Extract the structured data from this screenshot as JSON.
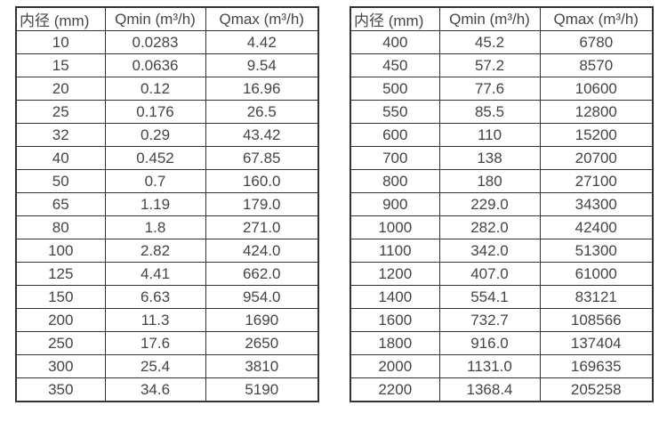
{
  "colors": {
    "background": "#ffffff",
    "text": "#444444",
    "border": "#333333"
  },
  "tables": [
    {
      "name": "flow-spec-table-small-diameters",
      "headers": [
        "内径 (mm)",
        "Qmin (m³/h)",
        "Qmax (m³/h)"
      ],
      "rows": [
        [
          "10",
          "0.0283",
          "4.42"
        ],
        [
          "15",
          "0.0636",
          "9.54"
        ],
        [
          "20",
          "0.12",
          "16.96"
        ],
        [
          "25",
          "0.176",
          "26.5"
        ],
        [
          "32",
          "0.29",
          "43.42"
        ],
        [
          "40",
          "0.452",
          "67.85"
        ],
        [
          "50",
          "0.7",
          "160.0"
        ],
        [
          "65",
          "1.19",
          "179.0"
        ],
        [
          "80",
          "1.8",
          "271.0"
        ],
        [
          "100",
          "2.82",
          "424.0"
        ],
        [
          "125",
          "4.41",
          "662.0"
        ],
        [
          "150",
          "6.63",
          "954.0"
        ],
        [
          "200",
          "11.3",
          "1690"
        ],
        [
          "250",
          "17.6",
          "2650"
        ],
        [
          "300",
          "25.4",
          "3810"
        ],
        [
          "350",
          "34.6",
          "5190"
        ]
      ]
    },
    {
      "name": "flow-spec-table-large-diameters",
      "headers": [
        "内径 (mm)",
        "Qmin (m³/h)",
        "Qmax (m³/h)"
      ],
      "rows": [
        [
          "400",
          "45.2",
          "6780"
        ],
        [
          "450",
          "57.2",
          "8570"
        ],
        [
          "500",
          "77.6",
          "10600"
        ],
        [
          "550",
          "85.5",
          "12800"
        ],
        [
          "600",
          "110",
          "15200"
        ],
        [
          "700",
          "138",
          "20700"
        ],
        [
          "800",
          "180",
          "27100"
        ],
        [
          "900",
          "229.0",
          "34300"
        ],
        [
          "1000",
          "282.0",
          "42400"
        ],
        [
          "1100",
          "342.0",
          "51300"
        ],
        [
          "1200",
          "407.0",
          "61000"
        ],
        [
          "1400",
          "554.1",
          "83121"
        ],
        [
          "1600",
          "732.7",
          "108566"
        ],
        [
          "1800",
          "916.0",
          "137404"
        ],
        [
          "2000",
          "1131.0",
          "169635"
        ],
        [
          "2200",
          "1368.4",
          "205258"
        ]
      ]
    }
  ]
}
